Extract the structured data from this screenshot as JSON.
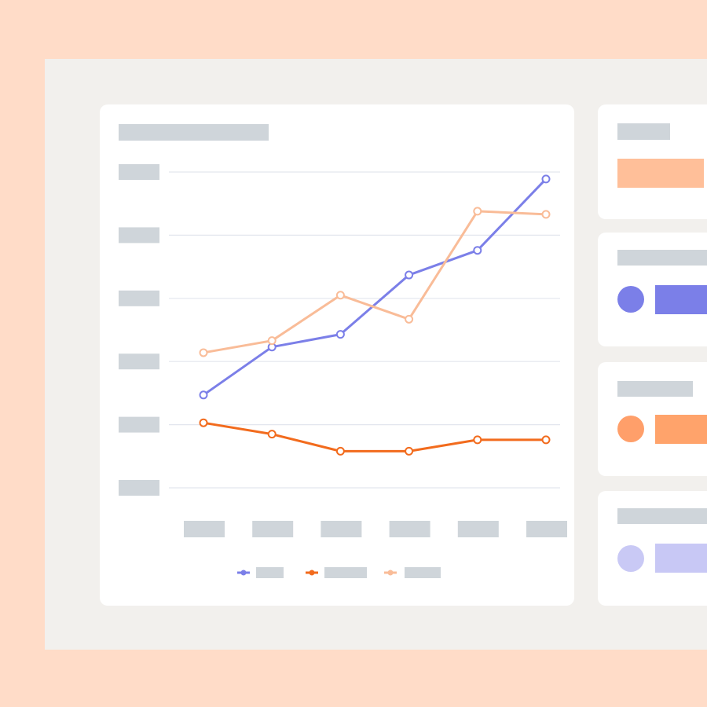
{
  "colors": {
    "background": "#ffdcc8",
    "panel": "#f2f0ed",
    "placeholder": "#cfd5da",
    "gridline": "#e3e6ee"
  },
  "chart_data": {
    "type": "line",
    "title": "",
    "xlabel": "",
    "ylabel": "",
    "x": [
      1,
      2,
      3,
      4,
      5,
      6
    ],
    "ylim": [
      0,
      5
    ],
    "yticks": [
      0,
      1,
      2,
      3,
      4,
      5
    ],
    "grid": true,
    "legend": "bottom",
    "series": [
      {
        "color": "#7b7fe8",
        "values": [
          1.47,
          2.23,
          2.43,
          3.37,
          3.76,
          4.89
        ]
      },
      {
        "color": "#f26b1d",
        "values": [
          1.03,
          0.85,
          0.58,
          0.58,
          0.76,
          0.76
        ]
      },
      {
        "color": "#f9bc98",
        "values": [
          2.14,
          2.33,
          3.05,
          2.67,
          4.38,
          4.33
        ]
      }
    ]
  },
  "side_cards": [
    {
      "accent": "#ffbf99",
      "has_dot": false
    },
    {
      "accent": "#7b7fe8",
      "has_dot": true
    },
    {
      "accent": "#ffa36b",
      "dot_color": "#ff9f6a",
      "has_dot": true
    },
    {
      "accent": "#c8c8f5",
      "has_dot": true
    }
  ]
}
